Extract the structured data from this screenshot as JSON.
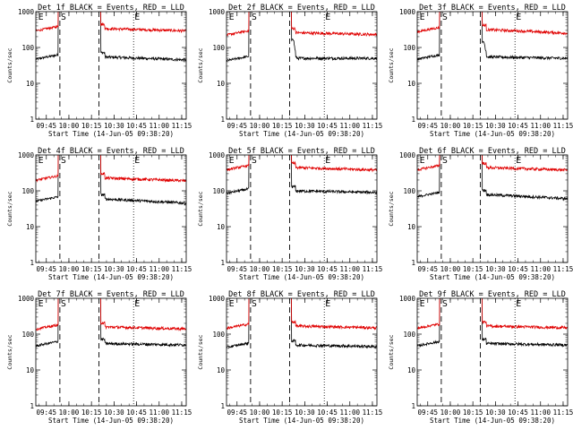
{
  "chart_data": [
    {
      "type": "line",
      "title": "Det 1f BLACK = Events, RED = LLD",
      "xlabel": "Start Time (14-Jun-05 09:38:20)",
      "ylabel": "Counts/sec",
      "yscale": "log",
      "ylim": [
        1,
        1000
      ],
      "xlim": [
        "09:38",
        "11:18"
      ],
      "x_ticks": [
        "09:45",
        "10:00",
        "10:15",
        "10:30",
        "10:45",
        "11:00",
        "11:15"
      ],
      "y_ticks": [
        "1",
        "10",
        "100",
        "1000"
      ],
      "markers": [
        {
          "label": "E",
          "time": "09:39"
        },
        {
          "label": "S",
          "time": "09:54"
        },
        {
          "label": "E",
          "time": "10:43"
        }
      ],
      "series": [
        {
          "name": "BLACK = Events",
          "color": "#000000",
          "baseline": 55,
          "end_value": 45,
          "spike": {
            "time": "10:22",
            "value": 0
          }
        },
        {
          "name": "RED = LLD",
          "color": "#e00000",
          "baseline": 340,
          "end_value": 290,
          "spike": {
            "time": "10:22",
            "value": 0
          }
        }
      ]
    },
    {
      "type": "line",
      "title": "Det 2f BLACK = Events, RED = LLD",
      "xlabel": "Start Time (14-Jun-05 09:38:20)",
      "ylabel": "Counts/sec",
      "yscale": "log",
      "ylim": [
        1,
        1000
      ],
      "xlim": [
        "09:38",
        "11:18"
      ],
      "x_ticks": [
        "09:45",
        "10:00",
        "10:15",
        "10:30",
        "10:45",
        "11:00",
        "11:15"
      ],
      "y_ticks": [
        "1",
        "10",
        "100",
        "1000"
      ],
      "markers": [
        {
          "label": "E",
          "time": "09:39"
        },
        {
          "label": "S",
          "time": "09:54"
        },
        {
          "label": "E",
          "time": "10:43"
        }
      ],
      "series": [
        {
          "name": "BLACK = Events",
          "color": "#000000",
          "baseline": 50,
          "end_value": 50,
          "spike": {
            "time": "10:22",
            "value": 170
          }
        },
        {
          "name": "RED = LLD",
          "color": "#e00000",
          "baseline": 260,
          "end_value": 230,
          "spike": {
            "time": "10:22",
            "value": 0
          }
        }
      ]
    },
    {
      "type": "line",
      "title": "Det 3f BLACK = Events, RED = LLD",
      "xlabel": "Start Time (14-Jun-05 09:38:20)",
      "ylabel": "Counts/sec",
      "yscale": "log",
      "ylim": [
        1,
        1000
      ],
      "xlim": [
        "09:38",
        "11:18"
      ],
      "x_ticks": [
        "09:45",
        "10:00",
        "10:15",
        "10:30",
        "10:45",
        "11:00",
        "11:15"
      ],
      "y_ticks": [
        "1",
        "10",
        "100",
        "1000"
      ],
      "markers": [
        {
          "label": "E",
          "time": "09:39"
        },
        {
          "label": "S",
          "time": "09:54"
        },
        {
          "label": "E",
          "time": "10:43"
        }
      ],
      "series": [
        {
          "name": "BLACK = Events",
          "color": "#000000",
          "baseline": 55,
          "end_value": 50,
          "spike": {
            "time": "10:22",
            "value": 130
          }
        },
        {
          "name": "RED = LLD",
          "color": "#e00000",
          "baseline": 320,
          "end_value": 250,
          "spike": {
            "time": "10:22",
            "value": 0
          }
        }
      ]
    },
    {
      "type": "line",
      "title": "Det 4f BLACK = Events, RED = LLD",
      "xlabel": "Start Time (14-Jun-05 09:38:20)",
      "ylabel": "Counts/sec",
      "yscale": "log",
      "ylim": [
        1,
        1000
      ],
      "xlim": [
        "09:38",
        "11:18"
      ],
      "x_ticks": [
        "09:45",
        "10:00",
        "10:15",
        "10:30",
        "10:45",
        "11:00",
        "11:15"
      ],
      "y_ticks": [
        "1",
        "10",
        "100",
        "1000"
      ],
      "markers": [
        {
          "label": "E",
          "time": "09:39"
        },
        {
          "label": "S",
          "time": "09:54"
        },
        {
          "label": "E",
          "time": "10:43"
        }
      ],
      "series": [
        {
          "name": "BLACK = Events",
          "color": "#000000",
          "baseline": 60,
          "end_value": 45,
          "spike": {
            "time": "10:22",
            "value": 0
          }
        },
        {
          "name": "RED = LLD",
          "color": "#e00000",
          "baseline": 230,
          "end_value": 190,
          "spike": {
            "time": "10:22",
            "value": 0
          }
        }
      ]
    },
    {
      "type": "line",
      "title": "Det 5f BLACK = Events, RED = LLD",
      "xlabel": "Start Time (14-Jun-05 09:38:20)",
      "ylabel": "Counts/sec",
      "yscale": "log",
      "ylim": [
        1,
        1000
      ],
      "xlim": [
        "09:38",
        "11:18"
      ],
      "x_ticks": [
        "09:45",
        "10:00",
        "10:15",
        "10:30",
        "10:45",
        "11:00",
        "11:15"
      ],
      "y_ticks": [
        "1",
        "10",
        "100",
        "1000"
      ],
      "markers": [
        {
          "label": "E",
          "time": "09:39"
        },
        {
          "label": "S",
          "time": "09:54"
        },
        {
          "label": "E",
          "time": "10:43"
        }
      ],
      "series": [
        {
          "name": "BLACK = Events",
          "color": "#000000",
          "baseline": 100,
          "end_value": 90,
          "spike": {
            "time": "10:22",
            "value": 0
          }
        },
        {
          "name": "RED = LLD",
          "color": "#e00000",
          "baseline": 450,
          "end_value": 380,
          "spike": {
            "time": "10:22",
            "value": 0
          }
        }
      ]
    },
    {
      "type": "line",
      "title": "Det 6f BLACK = Events, RED = LLD",
      "xlabel": "Start Time (14-Jun-05 09:38:20)",
      "ylabel": "Counts/sec",
      "yscale": "log",
      "ylim": [
        1,
        1000
      ],
      "xlim": [
        "09:38",
        "11:18"
      ],
      "x_ticks": [
        "09:45",
        "10:00",
        "10:15",
        "10:30",
        "10:45",
        "11:00",
        "11:15"
      ],
      "y_ticks": [
        "1",
        "10",
        "100",
        "1000"
      ],
      "markers": [
        {
          "label": "E",
          "time": "09:39"
        },
        {
          "label": "S",
          "time": "09:54"
        },
        {
          "label": "E",
          "time": "10:43"
        }
      ],
      "series": [
        {
          "name": "BLACK = Events",
          "color": "#000000",
          "baseline": 80,
          "end_value": 60,
          "spike": {
            "time": "10:22",
            "value": 0
          }
        },
        {
          "name": "RED = LLD",
          "color": "#e00000",
          "baseline": 450,
          "end_value": 380,
          "spike": {
            "time": "10:22",
            "value": 0
          }
        }
      ]
    },
    {
      "type": "line",
      "title": "Det 7f BLACK = Events, RED = LLD",
      "xlabel": "Start Time (14-Jun-05 09:38:20)",
      "ylabel": "Counts/sec",
      "yscale": "log",
      "ylim": [
        1,
        1000
      ],
      "xlim": [
        "09:38",
        "11:18"
      ],
      "x_ticks": [
        "09:45",
        "10:00",
        "10:15",
        "10:30",
        "10:45",
        "11:00",
        "11:15"
      ],
      "y_ticks": [
        "1",
        "10",
        "100",
        "1000"
      ],
      "markers": [
        {
          "label": "E",
          "time": "09:39"
        },
        {
          "label": "S",
          "time": "09:54"
        },
        {
          "label": "E",
          "time": "10:43"
        }
      ],
      "series": [
        {
          "name": "BLACK = Events",
          "color": "#000000",
          "baseline": 55,
          "end_value": 50,
          "spike": {
            "time": "10:22",
            "value": 0
          }
        },
        {
          "name": "RED = LLD",
          "color": "#e00000",
          "baseline": 160,
          "end_value": 140,
          "spike": {
            "time": "10:22",
            "value": 0
          }
        }
      ]
    },
    {
      "type": "line",
      "title": "Det 8f BLACK = Events, RED = LLD",
      "xlabel": "Start Time (14-Jun-05 09:38:20)",
      "ylabel": "Counts/sec",
      "yscale": "log",
      "ylim": [
        1,
        1000
      ],
      "xlim": [
        "09:38",
        "11:18"
      ],
      "x_ticks": [
        "09:45",
        "10:00",
        "10:15",
        "10:30",
        "10:45",
        "11:00",
        "11:15"
      ],
      "y_ticks": [
        "1",
        "10",
        "100",
        "1000"
      ],
      "markers": [
        {
          "label": "E",
          "time": "09:39"
        },
        {
          "label": "S",
          "time": "09:54"
        },
        {
          "label": "E",
          "time": "10:43"
        }
      ],
      "series": [
        {
          "name": "BLACK = Events",
          "color": "#000000",
          "baseline": 50,
          "end_value": 45,
          "spike": {
            "time": "10:22",
            "value": 0
          }
        },
        {
          "name": "RED = LLD",
          "color": "#e00000",
          "baseline": 170,
          "end_value": 150,
          "spike": {
            "time": "10:22",
            "value": 0
          }
        }
      ]
    },
    {
      "type": "line",
      "title": "Det 9f BLACK = Events, RED = LLD",
      "xlabel": "Start Time (14-Jun-05 09:38:20)",
      "ylabel": "Counts/sec",
      "yscale": "log",
      "ylim": [
        1,
        1000
      ],
      "xlim": [
        "09:38",
        "11:18"
      ],
      "x_ticks": [
        "09:45",
        "10:00",
        "10:15",
        "10:30",
        "10:45",
        "11:00",
        "11:15"
      ],
      "y_ticks": [
        "1",
        "10",
        "100",
        "1000"
      ],
      "markers": [
        {
          "label": "E",
          "time": "09:39"
        },
        {
          "label": "S",
          "time": "09:54"
        },
        {
          "label": "E",
          "time": "10:43"
        }
      ],
      "series": [
        {
          "name": "BLACK = Events",
          "color": "#000000",
          "baseline": 55,
          "end_value": 50,
          "spike": {
            "time": "10:22",
            "value": 0
          }
        },
        {
          "name": "RED = LLD",
          "color": "#e00000",
          "baseline": 170,
          "end_value": 150,
          "spike": {
            "time": "10:22",
            "value": 0
          }
        }
      ]
    }
  ]
}
